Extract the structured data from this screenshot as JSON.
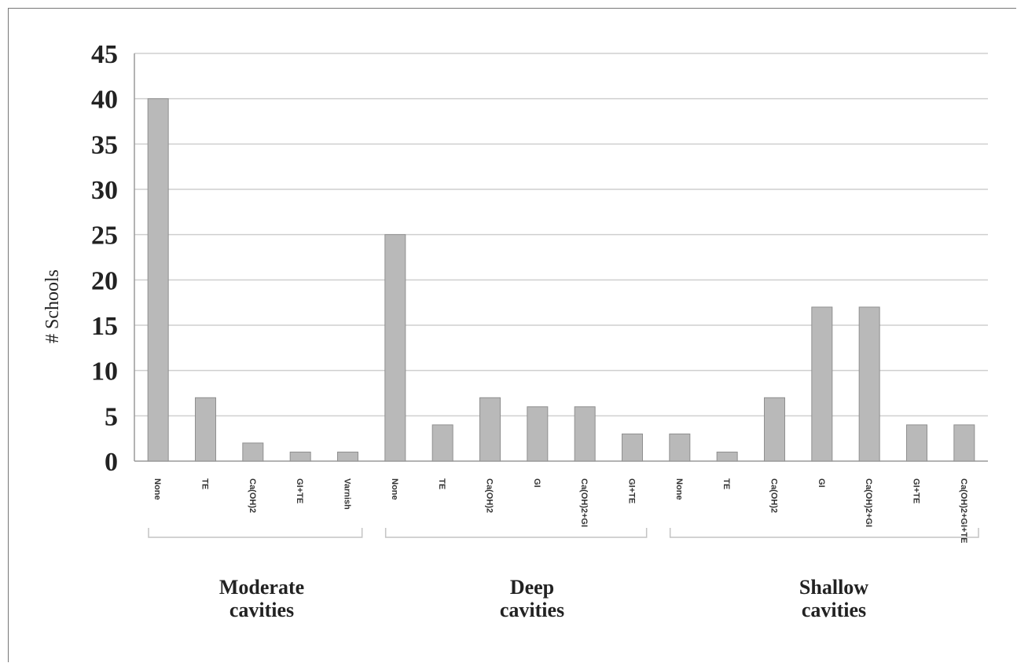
{
  "chart_data": {
    "type": "bar",
    "title": "",
    "ylabel": "# Schools",
    "xlabel": "",
    "ylim": [
      0,
      45
    ],
    "yticks": [
      0,
      5,
      10,
      15,
      20,
      25,
      30,
      35,
      40,
      45
    ],
    "grid": true,
    "bar_color": "#b9b9b9",
    "bar_edge_color": "#8f8f8f",
    "grid_color": "#cfcfcf",
    "groups": [
      {
        "label": "Moderate\ncavities",
        "categories": [
          "None",
          "TE",
          "Ca(OH)2",
          "GI+TE",
          "Varnish"
        ],
        "values": [
          40,
          7,
          2,
          1,
          1
        ]
      },
      {
        "label": "Deep\ncavities",
        "categories": [
          "None",
          "TE",
          "Ca(OH)2",
          "GI",
          "Ca(OH)2+GI",
          "GI+TE"
        ],
        "values": [
          25,
          4,
          7,
          6,
          6,
          3
        ]
      },
      {
        "label": "Shallow\ncavities",
        "categories": [
          "None",
          "TE",
          "Ca(OH)2",
          "GI",
          "Ca(OH)2+GI",
          "GI+TE",
          "Ca(OH)2+GI+TE"
        ],
        "values": [
          3,
          1,
          7,
          17,
          17,
          4,
          4
        ]
      }
    ]
  }
}
